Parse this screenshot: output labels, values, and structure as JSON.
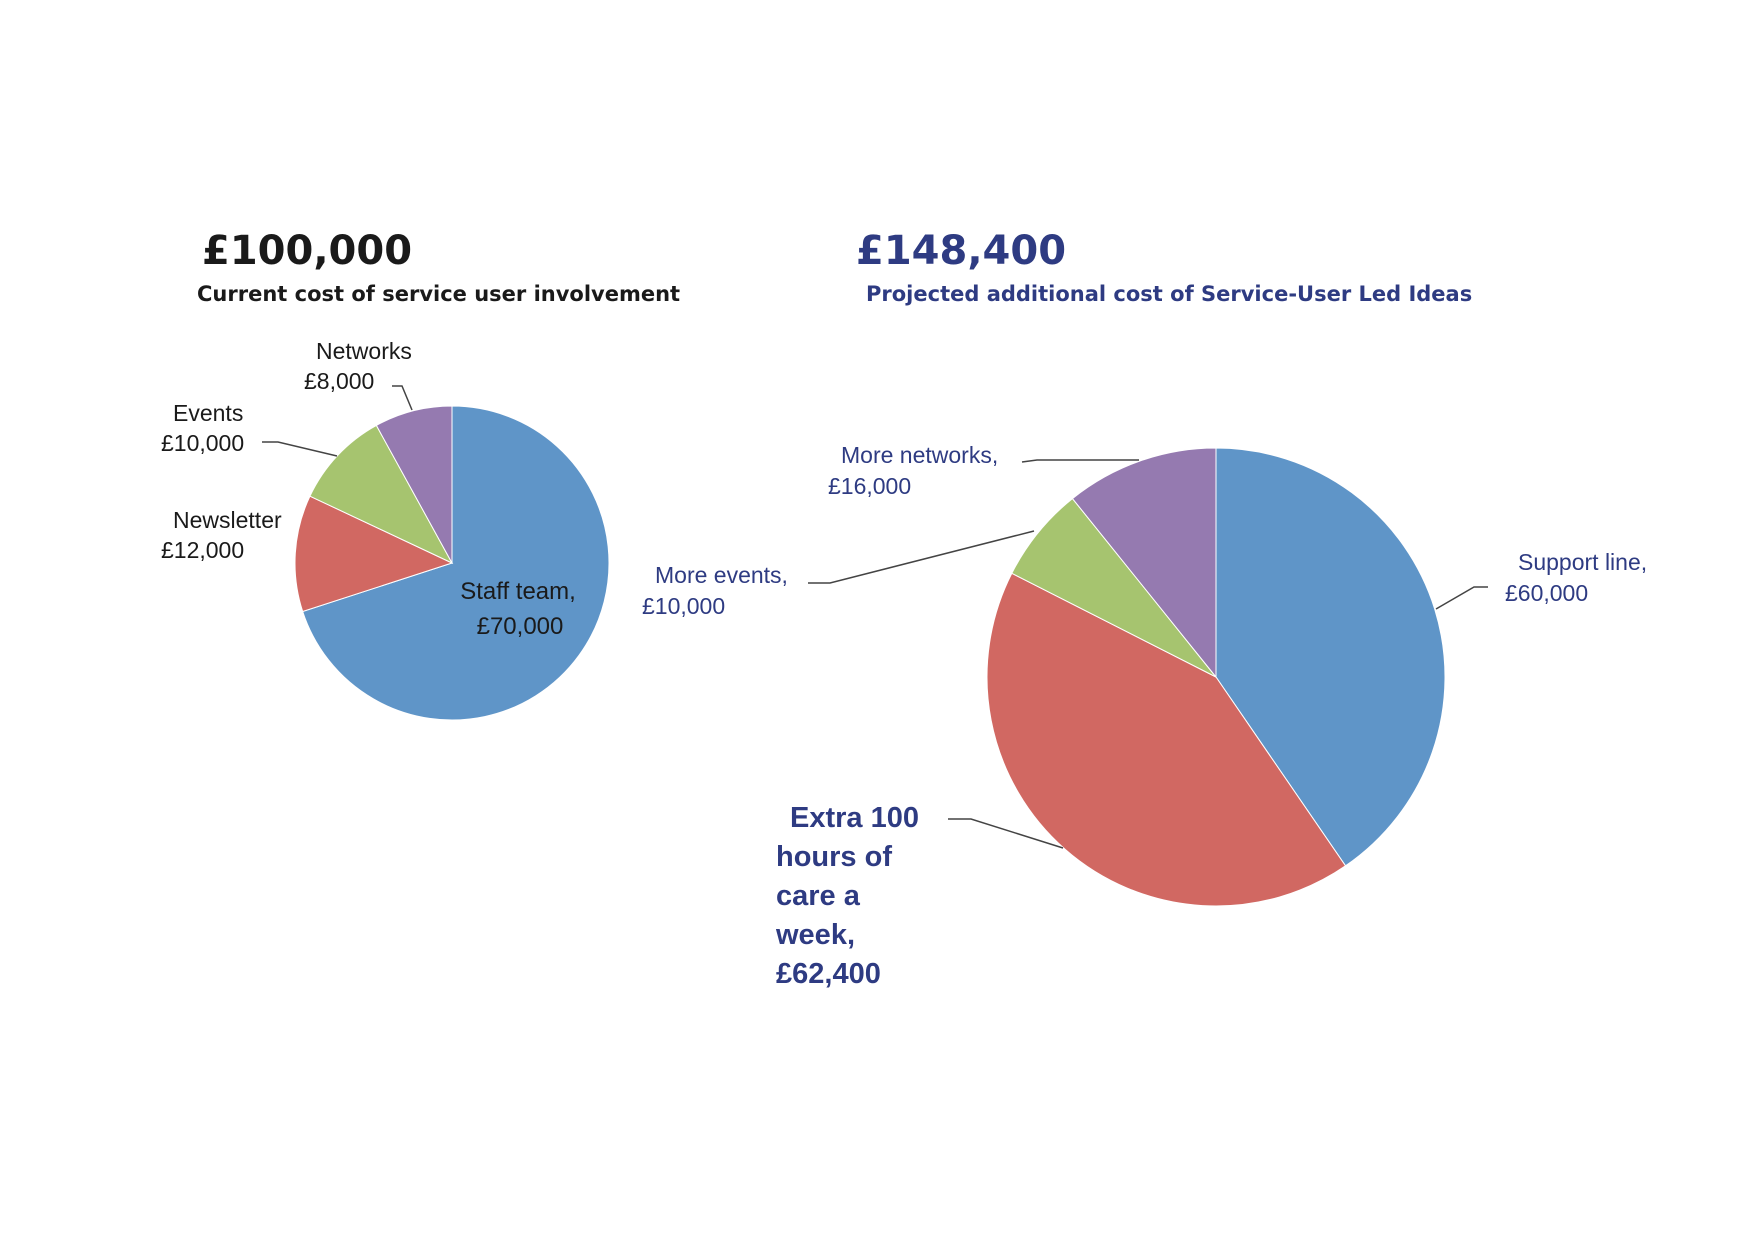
{
  "colors": {
    "blue": "#5f95c8",
    "red": "#d16862",
    "green": "#a6c46f",
    "purple": "#957ab0",
    "dark_text": "#1a1a1a",
    "navy_text": "#2e3b82"
  },
  "chart_data": [
    {
      "type": "pie",
      "total": "£100,000",
      "title": "Current cost of service user involvement",
      "slices": [
        {
          "label": "Staff team,",
          "amount": "£70,000",
          "value": 70000,
          "color": "#5f95c8"
        },
        {
          "label": "Newsletter",
          "amount": "£12,000",
          "value": 12000,
          "color": "#d16862"
        },
        {
          "label": "Events",
          "amount": "£10,000",
          "value": 10000,
          "color": "#a6c46f"
        },
        {
          "label": "Networks",
          "amount": "£8,000",
          "value": 8000,
          "color": "#957ab0"
        }
      ]
    },
    {
      "type": "pie",
      "total": "£148,400",
      "title": "Projected additional cost of Service-User Led Ideas",
      "slices": [
        {
          "label": "Support line,",
          "amount": "£60,000",
          "value": 60000,
          "color": "#5f95c8"
        },
        {
          "label": "Extra 100 hours of care a week,",
          "amount": "£62,400",
          "value": 62400,
          "color": "#d16862"
        },
        {
          "label": "More events,",
          "amount": "£10,000",
          "value": 10000,
          "color": "#a6c46f"
        },
        {
          "label": "More networks,",
          "amount": "£16,000",
          "value": 16000,
          "color": "#957ab0"
        }
      ]
    }
  ]
}
